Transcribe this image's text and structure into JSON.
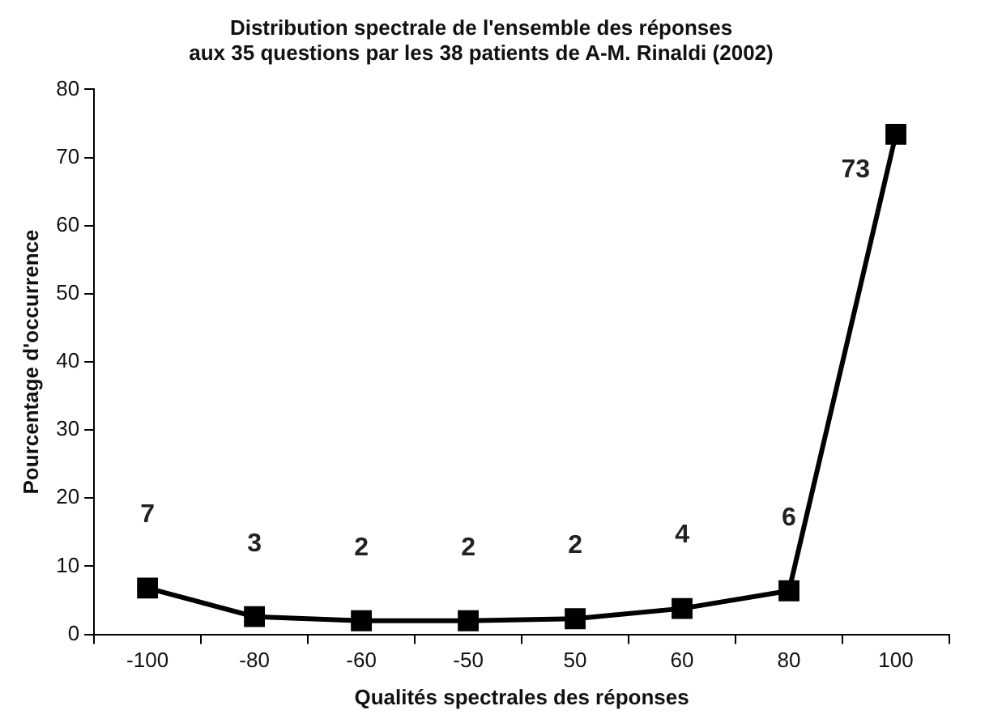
{
  "chart_data": {
    "type": "line",
    "title": "Distribution spectrale de l'ensemble des réponses\naux 35 questions par les 38 patients de A-M. Rinaldi (2002)",
    "xlabel": "Qualités spectrales des réponses",
    "ylabel": "Pourcentage d'occurrence",
    "categories": [
      "-100",
      "-80",
      "-60",
      "-50",
      "50",
      "60",
      "80",
      "100"
    ],
    "values": [
      6.8,
      2.6,
      2.0,
      2.0,
      2.3,
      3.8,
      6.4,
      73.4
    ],
    "value_labels": [
      "7",
      "3",
      "2",
      "2",
      "2",
      "4",
      "6",
      "73"
    ],
    "color": "#000000",
    "marker": "square",
    "line_style": "solid",
    "ylim": [
      0,
      80
    ],
    "yticks": [
      0,
      10,
      20,
      30,
      40,
      50,
      60,
      70,
      80
    ],
    "grid": false,
    "legend": false
  }
}
